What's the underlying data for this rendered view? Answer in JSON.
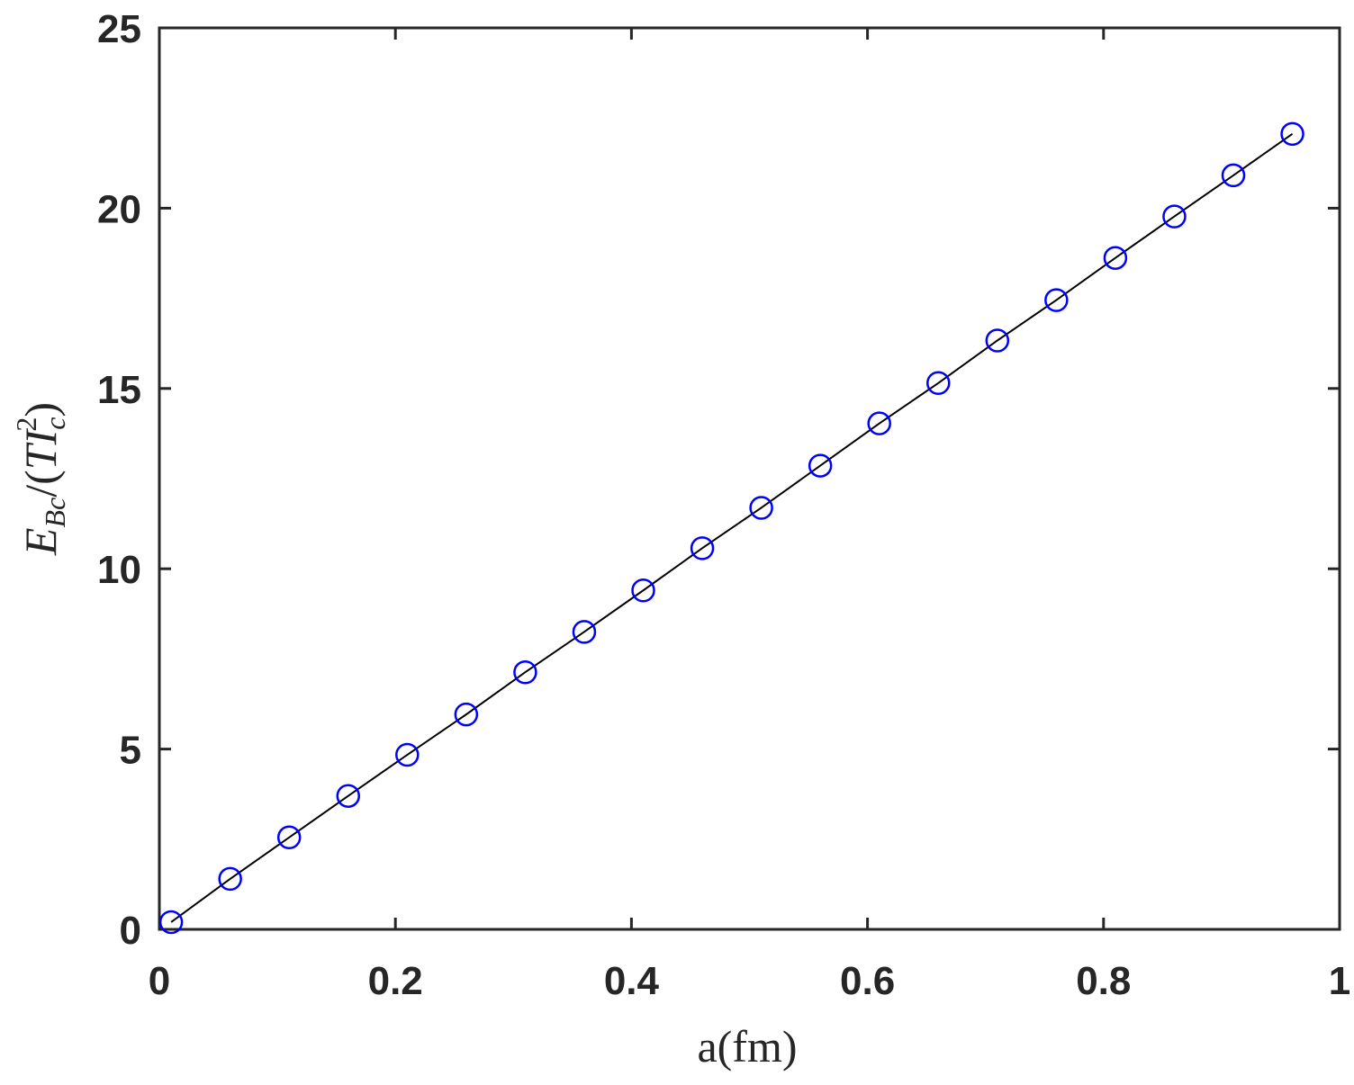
{
  "chart_data": {
    "type": "line",
    "title": "",
    "xlabel": "a(fm)",
    "ylabel": "E_Bc/(TI_c^2)",
    "xlim": [
      0,
      1
    ],
    "ylim": [
      0,
      25
    ],
    "xticks": [
      "0",
      "0.2",
      "0.4",
      "0.6",
      "0.8",
      "1"
    ],
    "yticks": [
      "0",
      "5",
      "10",
      "15",
      "20",
      "25"
    ],
    "grid": false,
    "series": [
      {
        "marker": "circle",
        "marker_color": "#0000ff",
        "line_color": "#000000",
        "x": [
          0.01,
          0.06,
          0.11,
          0.16,
          0.21,
          0.26,
          0.31,
          0.36,
          0.41,
          0.46,
          0.51,
          0.56,
          0.61,
          0.66,
          0.71,
          0.76,
          0.81,
          0.86,
          0.91,
          0.96
        ],
        "y": [
          0.2,
          1.4,
          2.55,
          3.7,
          4.84,
          5.96,
          7.13,
          8.25,
          9.4,
          10.57,
          11.69,
          12.86,
          14.03,
          15.15,
          16.33,
          17.45,
          18.62,
          19.77,
          20.91,
          22.06
        ]
      }
    ]
  }
}
